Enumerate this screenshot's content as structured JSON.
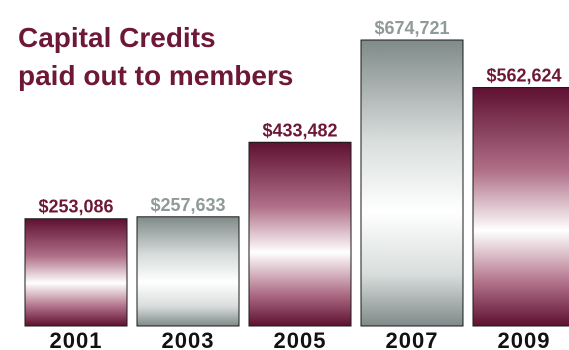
{
  "chart_data": {
    "type": "bar",
    "title_lines": [
      "Capital Credits",
      "paid out to members"
    ],
    "categories": [
      "2001",
      "2003",
      "2005",
      "2007",
      "2009"
    ],
    "values": [
      253086,
      257633,
      433482,
      674721,
      562624
    ],
    "value_labels": [
      "$253,086",
      "$257,633",
      "$433,482",
      "$674,721",
      "$562,624"
    ],
    "bar_styles": [
      "maroon",
      "silver",
      "maroon",
      "silver",
      "maroon"
    ],
    "xlabel": "",
    "ylabel": "",
    "ylim": [
      0,
      700000
    ],
    "grid": false,
    "legend": "none"
  },
  "colors": {
    "title": "#6e1838",
    "maroon_label": "#6e1838",
    "silver_label": "#8f9a99",
    "category_label": "#111111",
    "maroon_dark": "#5e1030",
    "maroon_mid": "#b07088",
    "silver_dark": "#7f8a89",
    "silver_mid": "#d8dddc",
    "highlight": "#ffffff",
    "bar_border": "#1a1a1a"
  }
}
